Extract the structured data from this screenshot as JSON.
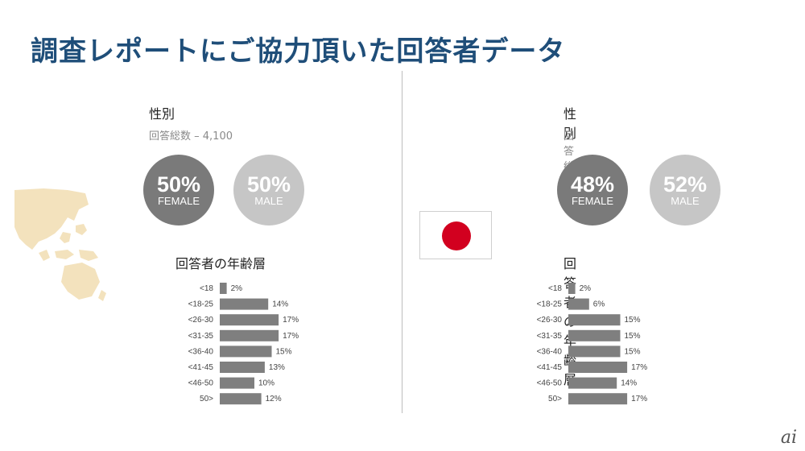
{
  "title": "調査レポートにご協力頂いた回答者データ",
  "colors": {
    "title": "#1f4e79",
    "bar": "#7f7f7f",
    "female_circle": "#7a7a7a",
    "male_circle": "#c6c6c6",
    "flag_red": "#d2001f",
    "map": "#f3e2bd"
  },
  "logo_text": "ai",
  "panels": [
    {
      "region": "asia-pacific",
      "gender_heading": "性別",
      "respondents": "回答総数 – 4,100",
      "female": {
        "pct": "50%",
        "label": "FEMALE"
      },
      "male": {
        "pct": "50%",
        "label": "MALE"
      },
      "age_heading": "回答者の年齢層"
    },
    {
      "region": "japan",
      "gender_heading": "性別",
      "respondents": "回答総数 – 400",
      "female": {
        "pct": "48%",
        "label": "FEMALE"
      },
      "male": {
        "pct": "52%",
        "label": "MALE"
      },
      "age_heading": "回答者の年齢層"
    }
  ],
  "chart_data": [
    {
      "type": "bar",
      "orientation": "horizontal",
      "categories": [
        "<18",
        "<18-25",
        "<26-30",
        "<31-35",
        "<36-40",
        "<41-45",
        "<46-50",
        "50>"
      ],
      "values": [
        2,
        14,
        17,
        17,
        15,
        13,
        10,
        12
      ],
      "value_labels": [
        "2%",
        "14%",
        "17%",
        "17%",
        "15%",
        "13%",
        "10%",
        "12%"
      ],
      "title": "回答者の年齢層",
      "xlim": [
        0,
        20
      ],
      "grid": false
    },
    {
      "type": "bar",
      "orientation": "horizontal",
      "categories": [
        "<18",
        "<18-25",
        "<26-30",
        "<31-35",
        "<36-40",
        "<41-45",
        "<46-50",
        "50>"
      ],
      "values": [
        2,
        6,
        15,
        15,
        15,
        17,
        14,
        17
      ],
      "value_labels": [
        "2%",
        "6%",
        "15%",
        "15%",
        "15%",
        "17%",
        "14%",
        "17%"
      ],
      "title": "回答者の年齢層",
      "xlim": [
        0,
        20
      ],
      "grid": false
    }
  ]
}
